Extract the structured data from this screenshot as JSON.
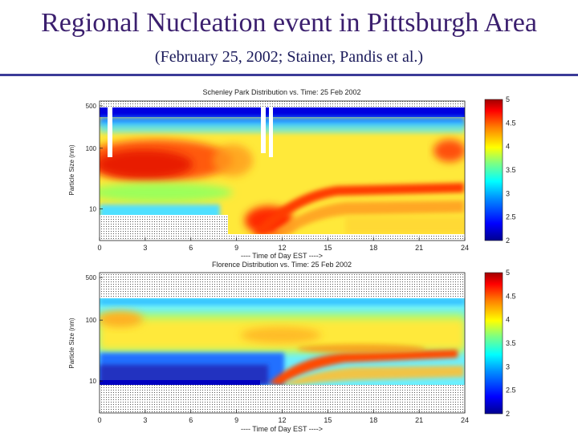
{
  "slide": {
    "title": "Regional Nucleation event in Pittsburgh Area",
    "subtitle": "(February 25, 2002; Stainer, Pandis et al.)"
  },
  "chart_data": [
    {
      "type": "heatmap",
      "title": "Schenley Park Distribution vs. Time: 25 Feb 2002",
      "xlabel": "---- Time of Day EST ---->",
      "ylabel": "Particle Size (nm)",
      "xlim": [
        0,
        24
      ],
      "ylim": [
        3,
        600
      ],
      "yscale": "log",
      "x_ticks": [
        0,
        3,
        6,
        9,
        12,
        15,
        18,
        21,
        24
      ],
      "y_ticks": [
        10,
        100,
        500
      ],
      "colorbar": {
        "range": [
          2,
          5
        ],
        "ticks": [
          "5",
          "4.5",
          "4",
          "3.5",
          "3",
          "2.5",
          "2"
        ]
      },
      "features": [
        {
          "x": [
            0,
            8
          ],
          "y": [
            40,
            200
          ],
          "level": 4.5
        },
        {
          "x": [
            10,
            12
          ],
          "y": [
            3,
            10
          ],
          "level": 4.6
        },
        {
          "x": [
            12,
            24
          ],
          "y": [
            20,
            40
          ],
          "level": 4.4
        }
      ]
    },
    {
      "type": "heatmap",
      "title": "Florence Distribution vs. Time: 25 Feb 2002",
      "xlabel": "---- Time of Day EST ---->",
      "ylabel": "Particle Size (nm)",
      "xlim": [
        0,
        24
      ],
      "ylim": [
        3,
        600
      ],
      "yscale": "log",
      "x_ticks": [
        0,
        3,
        6,
        9,
        12,
        15,
        18,
        21,
        24
      ],
      "y_ticks": [
        10,
        100,
        500
      ],
      "colorbar": {
        "range": [
          2,
          5
        ],
        "ticks": [
          "5",
          "4.5",
          "4",
          "3.5",
          "3",
          "2.5",
          "2"
        ]
      },
      "features": [
        {
          "x": [
            0,
            3
          ],
          "y": [
            80,
            120
          ],
          "level": 4.0
        },
        {
          "x": [
            11,
            16
          ],
          "y": [
            10,
            20
          ],
          "level": 4.6
        },
        {
          "x": [
            14,
            20
          ],
          "y": [
            20,
            35
          ],
          "level": 4.3
        }
      ]
    }
  ],
  "colors": {
    "title": "#3b1f6e",
    "rule": "#3b3b98",
    "colormap": [
      "#00008f",
      "#0000ff",
      "#0080ff",
      "#00e0ff",
      "#40ffbf",
      "#bfff40",
      "#ffe000",
      "#ff8000",
      "#ff2000",
      "#b00000"
    ]
  }
}
